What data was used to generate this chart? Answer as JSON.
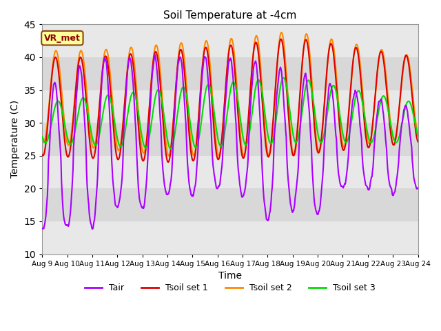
{
  "title": "Soil Temperature at -4cm",
  "xlabel": "Time",
  "ylabel": "Temperature (C)",
  "ylim": [
    10,
    45
  ],
  "yticks": [
    10,
    15,
    20,
    25,
    30,
    35,
    40,
    45
  ],
  "xtick_labels": [
    "Aug 9",
    "Aug 10",
    "Aug 11",
    "Aug 12",
    "Aug 13",
    "Aug 14",
    "Aug 15",
    "Aug 16",
    "Aug 17",
    "Aug 18",
    "Aug 19",
    "Aug 20",
    "Aug 21",
    "Aug 22",
    "Aug 23",
    "Aug 24"
  ],
  "colors": {
    "Tair": "#AA00FF",
    "Tsoil1": "#DD0000",
    "Tsoil2": "#FF8800",
    "Tsoil3": "#00DD00"
  },
  "legend_label": "VR_met",
  "bg_color": "#E8E8E8",
  "band_colors": [
    "#E8E8E8",
    "#D8D8D8"
  ]
}
